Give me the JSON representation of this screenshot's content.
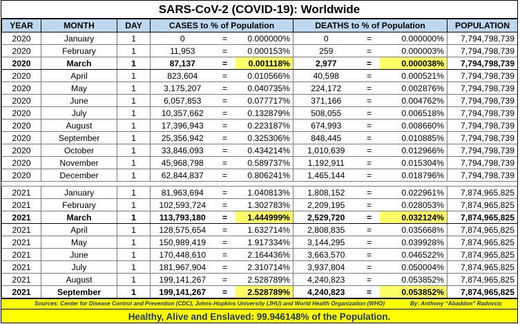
{
  "title": "SARS-CoV-2 (COVID-19): Worldwide",
  "headers": {
    "year": "YEAR",
    "month": "MONTH",
    "day": "DAY",
    "cases": "CASES to % of Population",
    "deaths": "DEATHS to % of Population",
    "population": "POPULATION"
  },
  "equals_sign": "=",
  "rows_2020": [
    {
      "year": "2020",
      "month": "January",
      "day": "1",
      "cases": "0",
      "cases_pct": "0.000000%",
      "deaths": "0",
      "deaths_pct": "0.000000%",
      "population": "7,794,798,739"
    },
    {
      "year": "2020",
      "month": "February",
      "day": "1",
      "cases": "11,953",
      "cases_pct": "0.000153%",
      "deaths": "259",
      "deaths_pct": "0.000003%",
      "population": "7,794,798,739"
    },
    {
      "year": "2020",
      "month": "March",
      "day": "1",
      "cases": "87,137",
      "cases_pct": "0.001118%",
      "deaths": "2,977",
      "deaths_pct": "0.000038%",
      "population": "7,794,798,739"
    },
    {
      "year": "2020",
      "month": "April",
      "day": "1",
      "cases": "823,604",
      "cases_pct": "0.010566%",
      "deaths": "40,598",
      "deaths_pct": "0.000521%",
      "population": "7,794,798,739"
    },
    {
      "year": "2020",
      "month": "May",
      "day": "1",
      "cases": "3,175,207",
      "cases_pct": "0.040735%",
      "deaths": "224,172",
      "deaths_pct": "0.002876%",
      "population": "7,794,798,739"
    },
    {
      "year": "2020",
      "month": "June",
      "day": "1",
      "cases": "6,057,853",
      "cases_pct": "0.077717%",
      "deaths": "371,166",
      "deaths_pct": "0.004762%",
      "population": "7,794,798,739"
    },
    {
      "year": "2020",
      "month": "July",
      "day": "1",
      "cases": "10,357,662",
      "cases_pct": "0.132879%",
      "deaths": "508,055",
      "deaths_pct": "0.006518%",
      "population": "7,794,798,739"
    },
    {
      "year": "2020",
      "month": "August",
      "day": "1",
      "cases": "17,396,943",
      "cases_pct": "0.223187%",
      "deaths": "674,993",
      "deaths_pct": "0.008660%",
      "population": "7,794,798,739"
    },
    {
      "year": "2020",
      "month": "September",
      "day": "1",
      "cases": "25,356,942",
      "cases_pct": "0.325306%",
      "deaths": "848,445",
      "deaths_pct": "0.010885%",
      "population": "7,794,798,739"
    },
    {
      "year": "2020",
      "month": "October",
      "day": "1",
      "cases": "33,846,093",
      "cases_pct": "0.434214%",
      "deaths": "1,010,639",
      "deaths_pct": "0.012966%",
      "population": "7,794,798,739"
    },
    {
      "year": "2020",
      "month": "November",
      "day": "1",
      "cases": "45,968,798",
      "cases_pct": "0.589737%",
      "deaths": "1,192,911",
      "deaths_pct": "0.015304%",
      "population": "7,794,798,739"
    },
    {
      "year": "2020",
      "month": "December",
      "day": "1",
      "cases": "62,844,837",
      "cases_pct": "0.806241%",
      "deaths": "1,465,144",
      "deaths_pct": "0.018796%",
      "population": "7,794,798,739"
    }
  ],
  "rows_2021": [
    {
      "year": "2021",
      "month": "January",
      "day": "1",
      "cases": "81,963,694",
      "cases_pct": "1.040813%",
      "deaths": "1,808,152",
      "deaths_pct": "0.022961%",
      "population": "7,874,965,825"
    },
    {
      "year": "2021",
      "month": "February",
      "day": "1",
      "cases": "102,593,724",
      "cases_pct": "1.302783%",
      "deaths": "2,209,195",
      "deaths_pct": "0.028053%",
      "population": "7,874,965,825"
    },
    {
      "year": "2021",
      "month": "March",
      "day": "1",
      "cases": "113,793,180",
      "cases_pct": "1.444999%",
      "deaths": "2,529,720",
      "deaths_pct": "0.032124%",
      "population": "7,874,965,825"
    },
    {
      "year": "2021",
      "month": "April",
      "day": "1",
      "cases": "128,575,654",
      "cases_pct": "1.632714%",
      "deaths": "2,808,835",
      "deaths_pct": "0.035668%",
      "population": "7,874,965,825"
    },
    {
      "year": "2021",
      "month": "May",
      "day": "1",
      "cases": "150,989,419",
      "cases_pct": "1.917334%",
      "deaths": "3,144,295",
      "deaths_pct": "0.039928%",
      "population": "7,874,965,825"
    },
    {
      "year": "2021",
      "month": "June",
      "day": "1",
      "cases": "170,448,610",
      "cases_pct": "2.164436%",
      "deaths": "3,663,570",
      "deaths_pct": "0.046522%",
      "population": "7,874,965,825"
    },
    {
      "year": "2021",
      "month": "July",
      "day": "1",
      "cases": "181,967,904",
      "cases_pct": "2.310714%",
      "deaths": "3,937,804",
      "deaths_pct": "0.050004%",
      "population": "7,874,965,825"
    },
    {
      "year": "2021",
      "month": "August",
      "day": "1",
      "cases": "199,141,267",
      "cases_pct": "2.528789%",
      "deaths": "4,240,823",
      "deaths_pct": "0.053852%",
      "population": "7,874,965,825"
    },
    {
      "year": "2021",
      "month": "September",
      "day": "1",
      "cases": "199,141,267",
      "cases_pct": "2.528789%",
      "deaths": "4,240,823",
      "deaths_pct": "0.053852%",
      "population": "7,874,965,825"
    }
  ],
  "sources": "Sources: Center for Disease Control and Prevention (CDC), Johns-Hopkins University (JHU) and World Health Organization (WHO)",
  "author": "By: Anthony “Abaddon” Radovcic",
  "footer": "Healthy, Alive and Enslaved: 99.946148% of the Population.",
  "colors": {
    "header_bg": "#bdd7ee",
    "highlight": "#ffff66",
    "banner": "#ffff00",
    "banner_text": "#1f3864"
  }
}
